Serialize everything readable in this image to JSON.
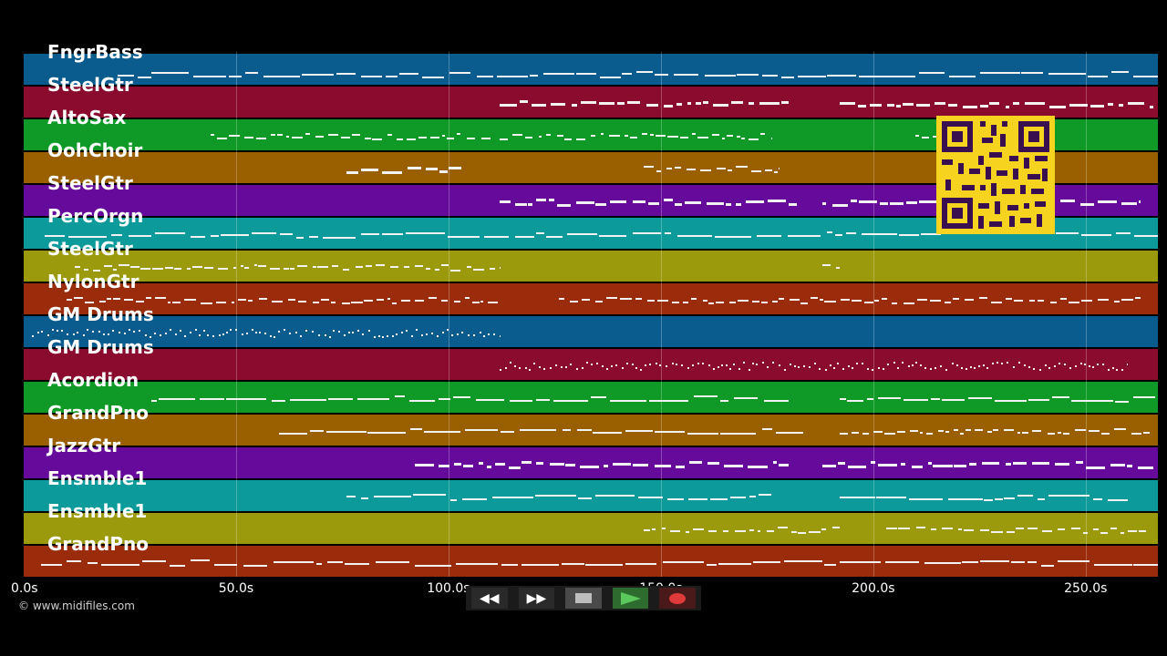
{
  "tracks": [
    {
      "label": "FngrBass",
      "color": "#0b5c8e",
      "ranges": [
        [
          22,
          30,
          "l"
        ],
        [
          30,
          200,
          "l"
        ],
        [
          200,
          267,
          "l"
        ]
      ]
    },
    {
      "label": "SteelGtr",
      "color": "#8a0b2e",
      "ranges": [
        [
          112,
          180,
          "d"
        ],
        [
          192,
          266,
          "d"
        ]
      ]
    },
    {
      "label": "AltoSax",
      "color": "#0f9a28",
      "ranges": [
        [
          44,
          110,
          "s"
        ],
        [
          112,
          176,
          "s"
        ],
        [
          210,
          230,
          "s"
        ]
      ]
    },
    {
      "label": "OohChoir",
      "color": "#9a6000",
      "ranges": [
        [
          76,
          103,
          "d"
        ],
        [
          146,
          178,
          "s"
        ]
      ]
    },
    {
      "label": "SteelGtr",
      "color": "#650a9a",
      "ranges": [
        [
          112,
          182,
          "d"
        ],
        [
          188,
          263,
          "d"
        ]
      ]
    },
    {
      "label": "PercOrgn",
      "color": "#0c9a9a",
      "ranges": [
        [
          5,
          90,
          "l"
        ],
        [
          90,
          216,
          "l"
        ],
        [
          243,
          267,
          "l"
        ]
      ]
    },
    {
      "label": "SteelGtr",
      "color": "#9a9a0c",
      "ranges": [
        [
          12,
          112,
          "s"
        ],
        [
          188,
          192,
          "s"
        ]
      ]
    },
    {
      "label": "NylonGtr",
      "color": "#9a2c0c",
      "ranges": [
        [
          10,
          112,
          "s"
        ],
        [
          126,
          263,
          "s"
        ]
      ]
    },
    {
      "label": "GM Drums",
      "color": "#0b5c8e",
      "ranges": [
        [
          2,
          112,
          "dot"
        ]
      ]
    },
    {
      "label": "GM Drums",
      "color": "#8a0b2e",
      "ranges": [
        [
          112,
          260,
          "dot"
        ]
      ]
    },
    {
      "label": "Acordion",
      "color": "#0f9a28",
      "ranges": [
        [
          30,
          180,
          "l"
        ],
        [
          192,
          267,
          "l"
        ]
      ]
    },
    {
      "label": "GrandPno",
      "color": "#9a6000",
      "ranges": [
        [
          60,
          184,
          "l"
        ],
        [
          192,
          265,
          "s"
        ]
      ]
    },
    {
      "label": "JazzGtr",
      "color": "#650a9a",
      "ranges": [
        [
          92,
          180,
          "d"
        ],
        [
          188,
          266,
          "d"
        ]
      ]
    },
    {
      "label": "Ensmble1",
      "color": "#0c9a9a",
      "ranges": [
        [
          76,
          176,
          "l"
        ],
        [
          192,
          260,
          "l"
        ]
      ]
    },
    {
      "label": "Ensmble1",
      "color": "#9a9a0c",
      "ranges": [
        [
          146,
          192,
          "s"
        ],
        [
          203,
          265,
          "s"
        ]
      ]
    },
    {
      "label": "GrandPno",
      "color": "#9a2c0c",
      "ranges": [
        [
          4,
          267,
          "l"
        ]
      ]
    }
  ],
  "axis": {
    "ticks": [
      {
        "value": 0,
        "label": "0.0s"
      },
      {
        "value": 50,
        "label": "50.0s"
      },
      {
        "value": 100,
        "label": "100.0s"
      },
      {
        "value": 150,
        "label": "150.0s"
      },
      {
        "value": 200,
        "label": "200.0s"
      },
      {
        "value": 250,
        "label": "250.0s"
      }
    ],
    "max": 267
  },
  "copyright": "© www.midifiles.com",
  "transport": {
    "rewind_icon": "rewind-icon",
    "forward_icon": "fast-forward-icon",
    "stop_icon": "stop-icon",
    "play_icon": "play-icon",
    "record_icon": "record-icon"
  }
}
